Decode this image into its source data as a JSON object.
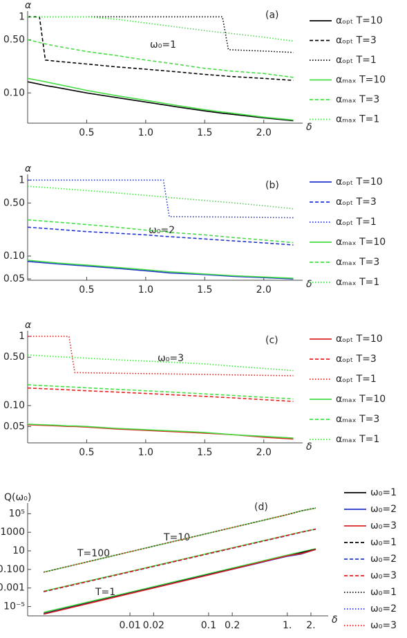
{
  "chart_data": [
    {
      "type": "line",
      "annotations": [
        "(a)",
        "ω₀=1"
      ],
      "y_label": "α",
      "x_label": "δ",
      "ylog": true,
      "xlim": [
        0,
        2.3
      ],
      "ylim": [
        0.04,
        1.05
      ],
      "xticks": [
        0.5,
        {
          "value": 1,
          "label": "1.0"
        },
        1.5,
        {
          "value": 2,
          "label": "2.0"
        }
      ],
      "yticks": [
        {
          "value": 0.1,
          "label": "0.10"
        },
        {
          "value": 0.5,
          "label": "0.50"
        },
        1
      ],
      "x": [
        0,
        0.1,
        0.15,
        0.25,
        0.5,
        0.75,
        1.0,
        1.25,
        1.5,
        1.65,
        1.7,
        2.0,
        2.25
      ],
      "series": [
        {
          "name": "αₒₚₜ T=10",
          "color": "#000000",
          "dash": "solid",
          "values": [
            0.14,
            0.13,
            0.125,
            0.118,
            0.1,
            0.087,
            0.076,
            0.066,
            0.058,
            0.054,
            0.053,
            0.047,
            0.043
          ]
        },
        {
          "name": "αₒₚₜ T=3",
          "color": "#000000",
          "dash": "dashed",
          "values": [
            1,
            1,
            0.27,
            0.26,
            0.24,
            0.22,
            0.205,
            0.19,
            0.175,
            0.168,
            0.165,
            0.155,
            0.146
          ]
        },
        {
          "name": "αₒₚₜ T=1",
          "color": "#000000",
          "dash": "dotted",
          "values": [
            1,
            1,
            1,
            1,
            1,
            1,
            1,
            1,
            1,
            1,
            0.37,
            0.355,
            0.34
          ]
        },
        {
          "name": "αₘₐₓ T=10",
          "color": "#44dd44",
          "dash": "solid",
          "values": [
            0.155,
            0.145,
            0.14,
            0.13,
            0.108,
            0.092,
            0.08,
            0.069,
            0.06,
            0.056,
            0.055,
            0.048,
            0.044
          ]
        },
        {
          "name": "αₘₐₓ T=3",
          "color": "#44dd44",
          "dash": "dashed",
          "values": [
            0.5,
            0.46,
            0.44,
            0.41,
            0.35,
            0.31,
            0.27,
            0.24,
            0.21,
            0.2,
            0.195,
            0.18,
            0.16
          ]
        },
        {
          "name": "αₘₐₓ T=1",
          "color": "#44dd44",
          "dash": "dotted",
          "values": [
            1,
            1,
            1,
            1,
            1,
            0.93,
            0.83,
            0.74,
            0.66,
            0.62,
            0.61,
            0.54,
            0.48
          ]
        }
      ]
    },
    {
      "type": "line",
      "annotations": [
        "(b)",
        "ω₀=2"
      ],
      "y_label": "α",
      "x_label": "δ",
      "ylog": true,
      "xlim": [
        0,
        2.3
      ],
      "ylim": [
        0.048,
        1.05
      ],
      "xticks": [
        0.5,
        {
          "value": 1,
          "label": "1.0"
        },
        1.5,
        {
          "value": 2,
          "label": "2.0"
        }
      ],
      "yticks": [
        0.05,
        {
          "value": 0.1,
          "label": "0.10"
        },
        {
          "value": 0.5,
          "label": "0.50"
        },
        1
      ],
      "x": [
        0,
        0.25,
        0.5,
        0.75,
        1.0,
        1.15,
        1.2,
        1.5,
        1.75,
        2.0,
        2.25
      ],
      "series": [
        {
          "name": "αₒₚₜ T=10",
          "color": "#2233cc",
          "dash": "solid",
          "values": [
            0.085,
            0.079,
            0.074,
            0.069,
            0.064,
            0.061,
            0.06,
            0.057,
            0.054,
            0.052,
            0.05
          ]
        },
        {
          "name": "αₒₚₜ T=3",
          "color": "#2233cc",
          "dash": "dashed",
          "values": [
            0.24,
            0.225,
            0.21,
            0.2,
            0.19,
            0.182,
            0.18,
            0.168,
            0.158,
            0.149,
            0.14
          ]
        },
        {
          "name": "αₒₚₜ T=1",
          "color": "#2233cc",
          "dash": "dotted",
          "values": [
            1,
            1,
            1,
            1,
            1,
            1,
            0.33,
            0.328,
            0.326,
            0.323,
            0.32
          ]
        },
        {
          "name": "αₘₐₓ T=10",
          "color": "#44dd44",
          "dash": "solid",
          "values": [
            0.088,
            0.081,
            0.076,
            0.071,
            0.066,
            0.063,
            0.062,
            0.058,
            0.055,
            0.053,
            0.051
          ]
        },
        {
          "name": "αₘₐₓ T=3",
          "color": "#44dd44",
          "dash": "dashed",
          "values": [
            0.3,
            0.28,
            0.26,
            0.24,
            0.22,
            0.21,
            0.205,
            0.19,
            0.175,
            0.163,
            0.15
          ]
        },
        {
          "name": "αₘₐₓ T=1",
          "color": "#44dd44",
          "dash": "dotted",
          "values": [
            0.83,
            0.78,
            0.73,
            0.68,
            0.63,
            0.6,
            0.59,
            0.54,
            0.5,
            0.46,
            0.42
          ]
        }
      ]
    },
    {
      "type": "line",
      "annotations": [
        "(c)",
        "ω₀=3"
      ],
      "y_label": "α",
      "x_label": "δ",
      "ylog": true,
      "xlim": [
        0,
        2.3
      ],
      "ylim": [
        0.029,
        1.05
      ],
      "xticks": [
        0.5,
        {
          "value": 1,
          "label": "1.0"
        },
        1.5,
        {
          "value": 2,
          "label": "2.0"
        }
      ],
      "yticks": [
        0.05,
        {
          "value": 0.1,
          "label": "0.10"
        },
        {
          "value": 0.5,
          "label": "0.50"
        },
        1
      ],
      "x": [
        0,
        0.25,
        0.35,
        0.4,
        0.5,
        0.75,
        1,
        1.25,
        1.5,
        1.75,
        2,
        2.25
      ],
      "series": [
        {
          "name": "αₒₚₜ T=10",
          "color": "#dd2222",
          "dash": "solid",
          "values": [
            0.053,
            0.051,
            0.05,
            0.05,
            0.049,
            0.046,
            0.044,
            0.042,
            0.04,
            0.038,
            0.035,
            0.033
          ]
        },
        {
          "name": "αₒₚₜ T=3",
          "color": "#dd2222",
          "dash": "dashed",
          "values": [
            0.18,
            0.172,
            0.169,
            0.167,
            0.164,
            0.157,
            0.15,
            0.143,
            0.136,
            0.129,
            0.122,
            0.115
          ]
        },
        {
          "name": "αₒₚₜ T=1",
          "color": "#dd2222",
          "dash": "dotted",
          "values": [
            1,
            1,
            1,
            0.3,
            0.298,
            0.294,
            0.29,
            0.286,
            0.282,
            0.278,
            0.274,
            0.27
          ]
        },
        {
          "name": "αₘₐₓ T=10",
          "color": "#44dd44",
          "dash": "solid",
          "values": [
            0.054,
            0.052,
            0.051,
            0.051,
            0.05,
            0.047,
            0.045,
            0.043,
            0.041,
            0.038,
            0.036,
            0.034
          ]
        },
        {
          "name": "αₘₐₓ T=3",
          "color": "#44dd44",
          "dash": "dashed",
          "values": [
            0.2,
            0.19,
            0.187,
            0.185,
            0.181,
            0.172,
            0.164,
            0.156,
            0.148,
            0.14,
            0.132,
            0.125
          ]
        },
        {
          "name": "αₘₐₓ T=1",
          "color": "#44dd44",
          "dash": "dotted",
          "values": [
            0.54,
            0.51,
            0.5,
            0.495,
            0.485,
            0.46,
            0.44,
            0.42,
            0.4,
            0.37,
            0.345,
            0.32
          ]
        }
      ]
    },
    {
      "type": "line",
      "annotations": [
        "(d)",
        "T=100",
        "T=10",
        "T=1"
      ],
      "y_label": "Q(ω₀)",
      "x_label": "δ",
      "ylog": true,
      "xlog": true,
      "xlim": [
        0.0005,
        3
      ],
      "ylim": [
        1e-06,
        500000
      ],
      "xticks": [
        0.01,
        0.02,
        0.1,
        0.2,
        {
          "value": 1,
          "label": "1."
        },
        {
          "value": 2,
          "label": "2."
        }
      ],
      "yticks": [
        {
          "value": 1e-05,
          "label": "10⁻⁵"
        },
        0.001,
        {
          "value": 0.1,
          "label": "0.100"
        },
        10,
        1000,
        {
          "value": 100000,
          "label": "10⁵"
        }
      ],
      "x": [
        0.0008,
        0.01,
        0.1,
        1,
        1.5,
        2.3
      ],
      "series": [
        {
          "color": "#44dd44",
          "dash": "solid",
          "values": [
            2.4e-06,
            0.00035,
            0.035,
            3.5,
            7.5,
            17
          ]
        },
        {
          "color": "#44dd44",
          "dash": "solid",
          "values": [
            0.00045,
            0.06,
            5.5,
            480,
            1050,
            2200
          ]
        },
        {
          "color": "#44dd44",
          "dash": "solid",
          "values": [
            0.05,
            8,
            800,
            80000,
            200000,
            400000
          ]
        },
        {
          "name": "ω₀=1",
          "color": "#000000",
          "dash": "solid",
          "values": [
            1.8e-06,
            0.00028,
            0.028,
            2.8,
            6.3,
            15
          ]
        },
        {
          "name": "ω₀=2",
          "color": "#2233cc",
          "dash": "solid",
          "values": [
            1.6e-06,
            0.00026,
            0.026,
            2.6,
            4.5,
            14
          ]
        },
        {
          "name": "ω₀=3",
          "color": "#dd2222",
          "dash": "solid",
          "values": [
            1.5e-06,
            0.00025,
            0.025,
            3.0,
            5,
            14
          ]
        },
        {
          "name": "ω₀=1",
          "color": "#000000",
          "dash": "dashed",
          "values": [
            0.0004,
            0.055,
            5,
            450,
            1000,
            2200
          ]
        },
        {
          "name": "ω₀=2",
          "color": "#2233cc",
          "dash": "dashed",
          "values": [
            0.0004,
            0.054,
            4.9,
            440,
            980,
            2150
          ]
        },
        {
          "name": "ω₀=3",
          "color": "#dd2222",
          "dash": "dashed",
          "values": [
            0.00041,
            0.056,
            5.1,
            460,
            1020,
            2250
          ]
        },
        {
          "name": "ω₀=1",
          "color": "#000000",
          "dash": "dotted",
          "values": [
            0.05,
            8,
            800,
            80000,
            200000,
            420000
          ]
        },
        {
          "name": "ω₀=2",
          "color": "#2233cc",
          "dash": "dotted",
          "values": [
            0.05,
            8,
            800,
            80000,
            200000,
            410000
          ]
        },
        {
          "name": "ω₀=3",
          "color": "#dd2222",
          "dash": "dotted",
          "values": [
            0.05,
            8,
            800,
            80000,
            200000,
            400000
          ]
        }
      ]
    }
  ]
}
